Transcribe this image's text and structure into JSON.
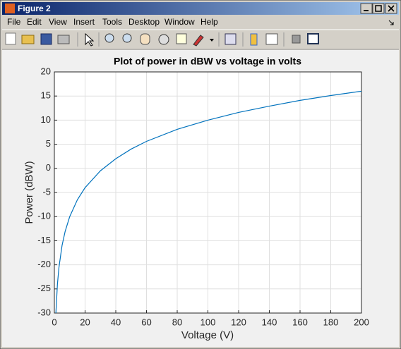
{
  "window": {
    "title": "Figure 2",
    "menu": [
      "File",
      "Edit",
      "View",
      "Insert",
      "Tools",
      "Desktop",
      "Window",
      "Help"
    ]
  },
  "chart_data": {
    "type": "line",
    "title": "Plot of power in dBW vs voltage in volts",
    "x_label": "Voltage (V)",
    "y_label": "Power (dBW)",
    "x": [
      1,
      2,
      3,
      5,
      7,
      10,
      15,
      20,
      30,
      40,
      50,
      60,
      80,
      100,
      120,
      140,
      160,
      180,
      200
    ],
    "values": [
      -30,
      -24.0,
      -20.5,
      -16.0,
      -13.1,
      -10,
      -6.5,
      -4.0,
      -0.5,
      2.0,
      4.0,
      5.6,
      8.1,
      10,
      11.6,
      12.9,
      14.1,
      15.1,
      16.0
    ],
    "color": "#0072bd",
    "xlim": [
      0,
      200
    ],
    "xticks": [
      0,
      20,
      40,
      60,
      80,
      100,
      120,
      140,
      160,
      180,
      200
    ],
    "ylim": [
      -30,
      20
    ],
    "yticks": [
      -30,
      -25,
      -20,
      -15,
      -10,
      -5,
      0,
      5,
      10,
      15,
      20
    ],
    "grid": true
  }
}
